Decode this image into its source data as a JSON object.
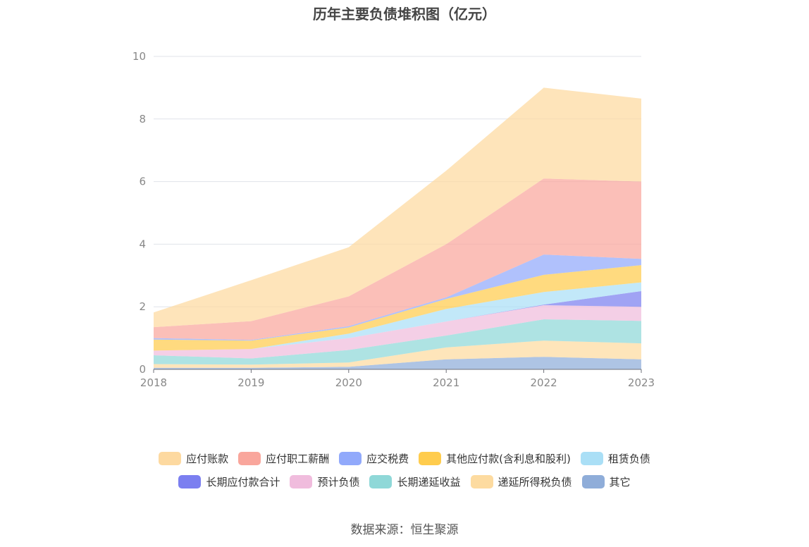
{
  "chart_data": {
    "type": "area",
    "title": "历年主要负债堆积图（亿元）",
    "x": [
      "2018",
      "2019",
      "2020",
      "2021",
      "2022",
      "2023"
    ],
    "ylim": [
      0,
      10
    ],
    "yticks": [
      "0",
      "2",
      "4",
      "6",
      "8",
      "10"
    ],
    "grid": true,
    "legend_position": "bottom",
    "series": [
      {
        "name": "其它",
        "color": "#8fadd9",
        "values": [
          0.05,
          0.05,
          0.08,
          0.32,
          0.4,
          0.32
        ]
      },
      {
        "name": "递延所得税负债",
        "color": "#fddba0",
        "values": [
          0.12,
          0.1,
          0.14,
          0.38,
          0.52,
          0.51
        ]
      },
      {
        "name": "长期递延收益",
        "color": "#8fd8d8",
        "values": [
          0.28,
          0.2,
          0.4,
          0.38,
          0.68,
          0.72
        ]
      },
      {
        "name": "预计负债",
        "color": "#f0bcdd",
        "values": [
          0.15,
          0.3,
          0.38,
          0.45,
          0.45,
          0.45
        ]
      },
      {
        "name": "长期应付款合计",
        "color": "#7b7ff0",
        "values": [
          0.0,
          0.0,
          0.0,
          0.0,
          0.02,
          0.5
        ]
      },
      {
        "name": "租赁负债",
        "color": "#aadff6",
        "values": [
          0.0,
          0.0,
          0.14,
          0.4,
          0.4,
          0.28
        ]
      },
      {
        "name": "其他应付款(含利息和股利)",
        "color": "#ffcc4d",
        "values": [
          0.35,
          0.27,
          0.2,
          0.32,
          0.55,
          0.55
        ]
      },
      {
        "name": "应交税费",
        "color": "#91a9fb",
        "values": [
          0.05,
          0.02,
          0.04,
          0.05,
          0.65,
          0.2
        ]
      },
      {
        "name": "应付职工薪酬",
        "color": "#f9a69c",
        "values": [
          0.35,
          0.6,
          0.95,
          1.7,
          2.43,
          2.47
        ]
      },
      {
        "name": "应付账款",
        "color": "#fdd9a0",
        "values": [
          0.47,
          1.31,
          1.57,
          2.35,
          2.9,
          2.65
        ]
      }
    ]
  },
  "legend_rows": [
    [
      "应付账款",
      "应付职工薪酬",
      "应交税费",
      "其他应付款(含利息和股利)",
      "租赁负债"
    ],
    [
      "长期应付款合计",
      "预计负债",
      "长期递延收益",
      "递延所得税负债",
      "其它"
    ]
  ],
  "source": "数据来源：恒生聚源"
}
